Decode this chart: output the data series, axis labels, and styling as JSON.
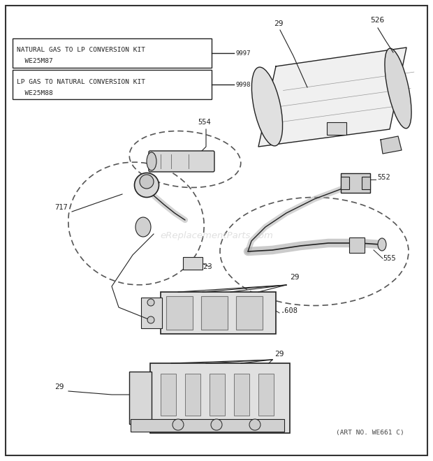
{
  "background_color": "#ffffff",
  "watermark": "eReplacementParts.com",
  "art_no": "(ART NO. WE661 C)",
  "box1_line1": "NATURAL GAS TO LP CONVERSION KIT",
  "box1_line2": "  WE25M87",
  "box2_line1": "LP GAS TO NATURAL CONVERSION KIT",
  "box2_line2": "  WE25M88",
  "box1_num": "9997",
  "box2_num": "9998",
  "figsize": [
    6.2,
    6.6
  ],
  "dpi": 100
}
